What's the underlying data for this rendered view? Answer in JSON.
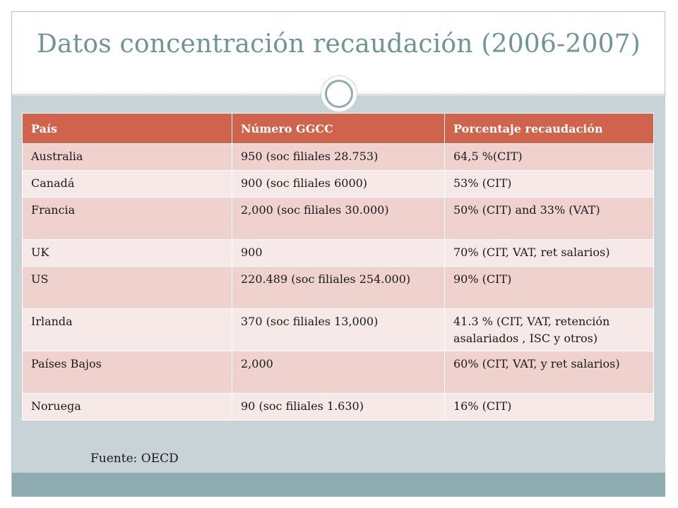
{
  "slide": {
    "title": "Datos concentración recaudación (2006-2007)",
    "source": "Fuente: OECD"
  },
  "table": {
    "headers": [
      "País",
      "Número GGCC",
      "Porcentaje recaudación"
    ],
    "rows": [
      [
        "Australia",
        "950 (soc filiales 28.753)",
        "64,5 %(CIT)"
      ],
      [
        "Canadá",
        "900 (soc filiales 6000)",
        "53% (CIT)"
      ],
      [
        "Francia",
        "2,000 (soc filiales 30.000)",
        "50%  (CIT) and 33% (VAT)"
      ],
      [
        "UK",
        "900",
        "70% (CIT, VAT, ret salarios)"
      ],
      [
        "US",
        "220.489 (soc filiales 254.000)",
        "90% (CIT)"
      ],
      [
        "Irlanda",
        "370 (soc filiales 13,000)",
        "41.3 % (CIT, VAT, retención asalariados , ISC y otros)"
      ],
      [
        "Países Bajos",
        "2,000",
        "60% (CIT, VAT, y ret salarios)"
      ],
      [
        "Noruega",
        "90 (soc filiales 1.630)",
        "16% (CIT)"
      ]
    ]
  },
  "colors": {
    "header_fill": "#cf634c",
    "row_odd": "#efd2cd",
    "row_even": "#f7e9e7",
    "title_text": "#6f9595",
    "body_band": "#c8d3d8",
    "footer_band": "#8fadb0"
  }
}
